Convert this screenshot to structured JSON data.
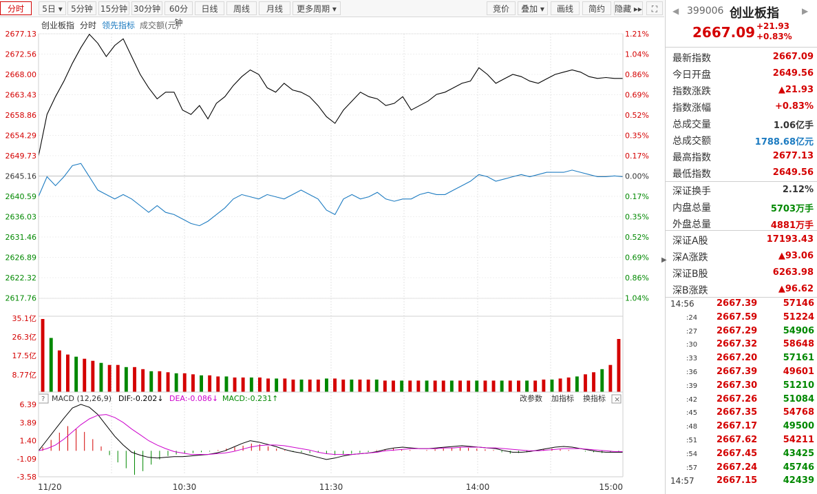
{
  "toolbar": {
    "tabs": [
      {
        "label": "分时",
        "active": true
      },
      {
        "label": "5日 ▾",
        "active": false
      },
      {
        "label": "5分钟",
        "active": false
      },
      {
        "label": "15分钟",
        "active": false
      },
      {
        "label": "30分钟",
        "active": false
      },
      {
        "label": "60分钟",
        "active": false
      },
      {
        "label": "日线",
        "active": false
      },
      {
        "label": "周线",
        "active": false
      },
      {
        "label": "月线",
        "active": false
      },
      {
        "label": "更多周期 ▾",
        "active": false
      }
    ],
    "right_buttons": [
      "竞价",
      "叠加 ▾",
      "画线",
      "简约",
      "隐藏 ▸▸",
      "⛶"
    ]
  },
  "chart_header": {
    "name": "创业板指",
    "mode": "分时",
    "indicator": "领先指标",
    "volume_label": "成交额(元)"
  },
  "chart_data": {
    "type": "line",
    "title": "创业板指",
    "price_axis_left": [
      "2677.13",
      "2672.56",
      "2668.00",
      "2663.43",
      "2658.86",
      "2654.29",
      "2649.73",
      "2645.16",
      "2640.59",
      "2636.03",
      "2631.46",
      "2626.89",
      "2622.32",
      "2617.76"
    ],
    "pct_axis_right": [
      "1.21%",
      "1.04%",
      "0.86%",
      "0.69%",
      "0.52%",
      "0.35%",
      "0.17%",
      "0.00%",
      "0.17%",
      "0.35%",
      "0.52%",
      "0.69%",
      "0.86%",
      "1.04%"
    ],
    "volume_axis": [
      "35.1亿",
      "26.3亿",
      "17.5亿",
      "8.77亿"
    ],
    "macd_axis": [
      "6.39",
      "3.89",
      "1.40",
      "-1.09",
      "-3.58"
    ],
    "x_ticks": [
      "11/20",
      "10:30",
      "11:30",
      "14:00",
      "15:00"
    ],
    "macd": {
      "params": "MACD (12,26,9)",
      "dif": "DIF:-0.202↓",
      "dea": "DEA:-0.086↓",
      "macd": "MACD:-0.231↑"
    },
    "macd_links": [
      "改参数",
      "加指标",
      "换指标"
    ],
    "series": [
      {
        "name": "价格",
        "color": "#000000",
        "values": [
          2649.7,
          2659.0,
          2663.0,
          2666.5,
          2670.5,
          2674.0,
          2677.0,
          2675.0,
          2672.0,
          2674.5,
          2676.0,
          2672.0,
          2668.0,
          2665.0,
          2662.5,
          2664.0,
          2664.0,
          2660.0,
          2659.0,
          2661.0,
          2658.0,
          2661.5,
          2663.0,
          2665.5,
          2667.5,
          2669.0,
          2668.0,
          2665.0,
          2664.0,
          2666.0,
          2664.5,
          2664.0,
          2663.0,
          2661.0,
          2658.5,
          2657.0,
          2660.0,
          2662.0,
          2664.0,
          2663.0,
          2662.5,
          2661.0,
          2661.5,
          2663.0,
          2660.0,
          2661.0,
          2662.0,
          2663.5,
          2664.0,
          2665.0,
          2666.0,
          2666.5,
          2669.5,
          2668.0,
          2666.0,
          2667.0,
          2668.0,
          2667.5,
          2666.5,
          2666.0,
          2667.0,
          2668.0,
          2668.5,
          2669.0,
          2668.5,
          2667.5,
          2667.1,
          2667.3,
          2667.1,
          2667.1
        ]
      },
      {
        "name": "领先指标",
        "color": "#1c7bc1",
        "values": [
          2640.6,
          2645.0,
          2643.0,
          2645.0,
          2647.5,
          2648.0,
          2645.0,
          2642.0,
          2641.0,
          2640.0,
          2641.0,
          2640.0,
          2638.5,
          2637.0,
          2638.5,
          2637.0,
          2636.5,
          2635.5,
          2634.5,
          2634.0,
          2635.0,
          2636.5,
          2638.0,
          2640.0,
          2641.0,
          2640.5,
          2640.0,
          2641.0,
          2640.5,
          2640.0,
          2641.0,
          2642.0,
          2641.0,
          2640.0,
          2637.5,
          2636.5,
          2640.0,
          2641.0,
          2640.0,
          2640.5,
          2641.5,
          2640.0,
          2639.5,
          2640.0,
          2640.0,
          2641.0,
          2641.5,
          2641.0,
          2641.0,
          2642.0,
          2643.0,
          2644.0,
          2645.5,
          2645.0,
          2644.0,
          2644.5,
          2645.0,
          2645.5,
          2645.0,
          2645.5,
          2646.0,
          2646.0,
          2646.0,
          2646.5,
          2646.0,
          2645.5,
          2645.0,
          2645.0,
          2645.2,
          2645.0
        ]
      }
    ],
    "volume": [
      35.1,
      26.0,
      20.0,
      18.0,
      17.0,
      16.0,
      15.0,
      14.0,
      13.0,
      13.0,
      12.0,
      12.0,
      11.0,
      10.0,
      10.0,
      9.5,
      9.0,
      9.0,
      8.5,
      8.0,
      8.0,
      7.5,
      7.5,
      7.0,
      7.0,
      7.0,
      7.0,
      6.5,
      6.5,
      6.5,
      6.0,
      6.0,
      6.0,
      6.0,
      6.5,
      6.5,
      6.0,
      6.0,
      6.0,
      6.0,
      6.0,
      5.5,
      5.5,
      5.5,
      5.5,
      5.5,
      5.5,
      5.5,
      5.5,
      5.5,
      5.5,
      5.5,
      5.5,
      5.5,
      5.5,
      5.5,
      5.5,
      5.5,
      5.5,
      5.5,
      6.0,
      6.0,
      6.5,
      7.0,
      7.5,
      8.5,
      9.5,
      11.0,
      13.0,
      25.5
    ],
    "macd_bars": [
      0.5,
      1.5,
      2.5,
      3.4,
      3.0,
      2.6,
      1.6,
      0.6,
      -0.6,
      -1.6,
      -2.4,
      -3.3,
      -2.8,
      -1.9,
      -1.2,
      -0.7,
      -0.5,
      -0.4,
      -0.3,
      -0.2,
      -0.1,
      0.1,
      0.3,
      0.5,
      0.7,
      1.0,
      0.9,
      0.6,
      0.3,
      0.1,
      -0.1,
      -0.2,
      -0.3,
      -0.2,
      -0.4,
      -0.6,
      -0.5,
      -0.4,
      -0.3,
      -0.2,
      0.1,
      0.2,
      0.3,
      0.2,
      0.1,
      0.0,
      0.1,
      0.2,
      0.3,
      0.4,
      0.5,
      0.4,
      0.3,
      0.2,
      0.1,
      -0.2,
      -0.4,
      -0.3,
      -0.2,
      0.0,
      0.2,
      0.3,
      0.2,
      0.1,
      0.0,
      -0.1,
      -0.2,
      -0.3,
      -0.2,
      -0.2
    ],
    "dif": [
      0.0,
      1.5,
      3.0,
      4.5,
      5.9,
      6.4,
      6.0,
      5.0,
      3.5,
      2.0,
      0.8,
      -0.2,
      -0.6,
      -0.9,
      -1.0,
      -0.9,
      -0.8,
      -0.8,
      -0.7,
      -0.6,
      -0.5,
      -0.3,
      0.0,
      0.5,
      1.0,
      1.4,
      1.2,
      0.9,
      0.6,
      0.2,
      -0.1,
      -0.3,
      -0.6,
      -0.9,
      -1.2,
      -1.0,
      -0.7,
      -0.5,
      -0.4,
      -0.3,
      -0.1,
      0.2,
      0.4,
      0.5,
      0.4,
      0.3,
      0.3,
      0.4,
      0.5,
      0.6,
      0.7,
      0.6,
      0.5,
      0.4,
      0.3,
      0.0,
      -0.2,
      -0.2,
      -0.1,
      0.1,
      0.3,
      0.5,
      0.6,
      0.5,
      0.3,
      0.1,
      -0.1,
      -0.2,
      -0.2,
      -0.2
    ],
    "dea": [
      0.0,
      0.3,
      0.8,
      1.6,
      2.6,
      3.6,
      4.4,
      4.9,
      5.0,
      4.6,
      3.9,
      3.0,
      2.2,
      1.4,
      0.8,
      0.3,
      -0.1,
      -0.3,
      -0.5,
      -0.5,
      -0.5,
      -0.4,
      -0.3,
      -0.1,
      0.2,
      0.5,
      0.7,
      0.8,
      0.8,
      0.7,
      0.5,
      0.3,
      0.1,
      -0.2,
      -0.4,
      -0.5,
      -0.5,
      -0.5,
      -0.4,
      -0.3,
      -0.2,
      0.0,
      0.1,
      0.2,
      0.3,
      0.3,
      0.3,
      0.3,
      0.4,
      0.4,
      0.5,
      0.5,
      0.5,
      0.4,
      0.4,
      0.3,
      0.2,
      0.1,
      0.0,
      0.0,
      0.1,
      0.2,
      0.3,
      0.3,
      0.3,
      0.2,
      0.1,
      0.0,
      -0.1,
      -0.1
    ]
  },
  "panel": {
    "code": "399006",
    "name": "创业板指",
    "price": "2667.09",
    "change": "+21.93",
    "change_pct": "+0.83%",
    "rows1": [
      {
        "k": "最新指数",
        "v": "2667.09",
        "c": "red"
      },
      {
        "k": "今日开盘",
        "v": "2649.56",
        "c": "red"
      },
      {
        "k": "指数涨跌",
        "v": "▲21.93",
        "c": "red"
      },
      {
        "k": "指数涨幅",
        "v": "+0.83%",
        "c": "red"
      },
      {
        "k": "总成交量",
        "v": "1.06亿手",
        "c": "black"
      },
      {
        "k": "总成交额",
        "v": "1788.68亿元",
        "c": "blue"
      },
      {
        "k": "最高指数",
        "v": "2677.13",
        "c": "red"
      },
      {
        "k": "最低指数",
        "v": "2649.56",
        "c": "red"
      }
    ],
    "rows2": [
      {
        "k": "深证换手",
        "v": "2.12%",
        "c": "black"
      },
      {
        "k": "内盘总量",
        "v": "5703万手",
        "c": "green"
      },
      {
        "k": "外盘总量",
        "v": "4881万手",
        "c": "red"
      }
    ],
    "rows3": [
      {
        "k": "深证A股",
        "v": "17193.43",
        "c": "red"
      },
      {
        "k": "深A涨跌",
        "v": "▲93.06",
        "c": "red"
      },
      {
        "k": "深证B股",
        "v": "6263.98",
        "c": "red"
      },
      {
        "k": "深B涨跌",
        "v": "▲96.62",
        "c": "red"
      }
    ],
    "trades": [
      {
        "t": "14:56",
        "p": "2667.39",
        "q": "57146",
        "c": "red"
      },
      {
        "t": ":24",
        "p": "2667.59",
        "q": "51224",
        "c": "red"
      },
      {
        "t": ":27",
        "p": "2667.29",
        "q": "54906",
        "c": "green"
      },
      {
        "t": ":30",
        "p": "2667.32",
        "q": "58648",
        "c": "red"
      },
      {
        "t": ":33",
        "p": "2667.20",
        "q": "57161",
        "c": "green"
      },
      {
        "t": ":36",
        "p": "2667.39",
        "q": "49601",
        "c": "red"
      },
      {
        "t": ":39",
        "p": "2667.30",
        "q": "51210",
        "c": "green"
      },
      {
        "t": ":42",
        "p": "2667.26",
        "q": "51084",
        "c": "green"
      },
      {
        "t": ":45",
        "p": "2667.35",
        "q": "54768",
        "c": "red"
      },
      {
        "t": ":48",
        "p": "2667.17",
        "q": "49500",
        "c": "green"
      },
      {
        "t": ":51",
        "p": "2667.62",
        "q": "54211",
        "c": "red"
      },
      {
        "t": ":54",
        "p": "2667.45",
        "q": "43425",
        "c": "green"
      },
      {
        "t": ":57",
        "p": "2667.24",
        "q": "45746",
        "c": "green"
      },
      {
        "t": "14:57",
        "p": "2667.15",
        "q": "42439",
        "c": "green"
      }
    ]
  }
}
